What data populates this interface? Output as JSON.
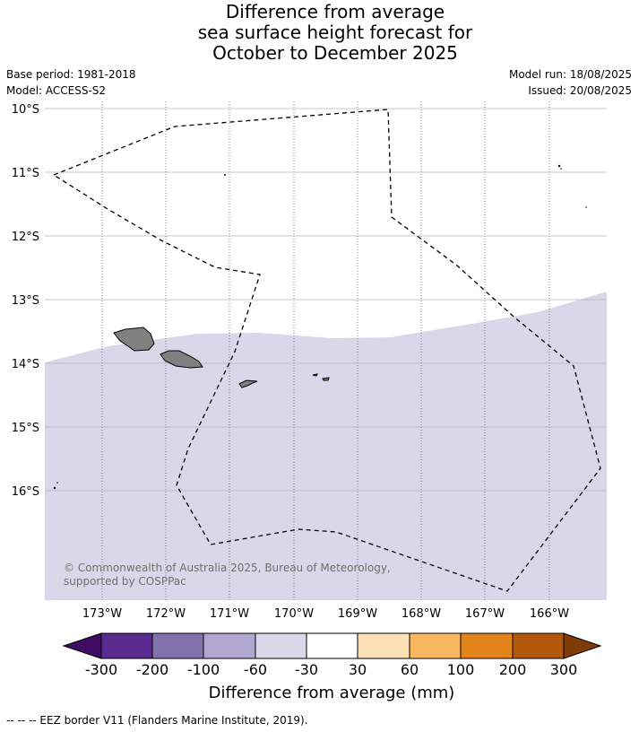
{
  "title": {
    "line1": "Difference from average",
    "line2": "sea surface height forecast for",
    "line3": "October to December 2025"
  },
  "meta": {
    "base_period": "Base period: 1981-2018",
    "model": "Model: ACCESS-S2",
    "model_run": "Model run: 18/08/2025",
    "issued": "Issued: 20/08/2025"
  },
  "map": {
    "lat_labels": [
      "10°S",
      "11°S",
      "12°S",
      "13°S",
      "14°S",
      "15°S",
      "16°S"
    ],
    "lon_labels": [
      "173°W",
      "172°W",
      "171°W",
      "170°W",
      "169°W",
      "168°W",
      "167°W",
      "166°W"
    ],
    "forecast_category": "-60 to -30",
    "fill_color": "#d8d8ea",
    "land_color": "#808080",
    "eez_line_style": "dashed"
  },
  "copyright": "© Commonwealth of Australia 2025, Bureau of Meteorology, supported by COSPPac",
  "colorbar": {
    "title": "Difference from average (mm)",
    "ticks": [
      "-300",
      "-200",
      "-100",
      "-60",
      "-30",
      "30",
      "60",
      "100",
      "200",
      "300"
    ],
    "colors": [
      "#3f0b63",
      "#5b2a8e",
      "#8172ae",
      "#b0a7d1",
      "#d8d8ea",
      "#ffffff",
      "#fee0b6",
      "#fbb660",
      "#e2841a",
      "#b3580a",
      "#7f3b08"
    ]
  },
  "footnote": "--  --  -- EEZ border V11 (Flanders Marine Institute, 2019)."
}
